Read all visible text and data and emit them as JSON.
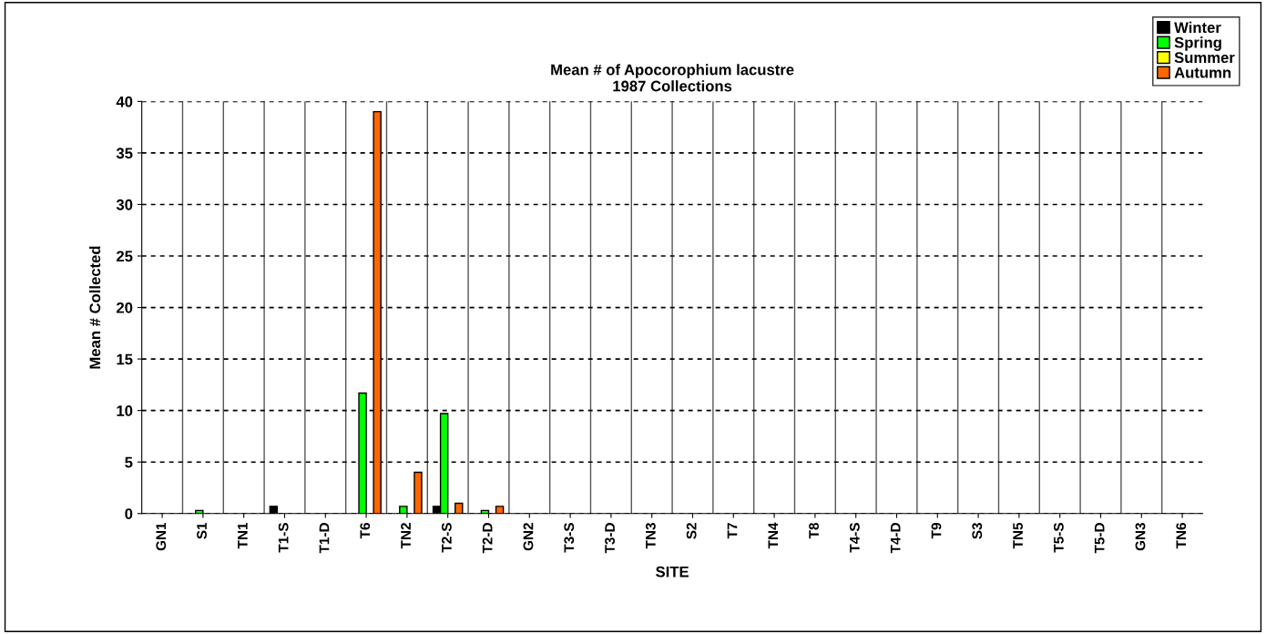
{
  "chart_data": {
    "type": "bar",
    "title": "Mean # of Apocorophium lacustre\n1987 Collections",
    "xlabel": "SITE",
    "ylabel": "Mean # Collected",
    "categories": [
      "GN1",
      "S1",
      "TN1",
      "T1-S",
      "T1-D",
      "T6",
      "TN2",
      "T2-S",
      "T2-D",
      "GN2",
      "T3-S",
      "T3-D",
      "TN3",
      "S2",
      "T7",
      "TN4",
      "T8",
      "T4-S",
      "T4-D",
      "T9",
      "S3",
      "TN5",
      "T5-S",
      "T5-D",
      "GN3",
      "TN6"
    ],
    "series": [
      {
        "name": "Winter",
        "color": "#000000",
        "values": [
          0,
          0,
          0,
          0.7,
          0,
          0,
          0,
          0.7,
          0,
          0,
          0,
          0,
          0,
          0,
          0,
          0,
          0,
          0,
          0,
          0,
          0,
          0,
          0,
          0,
          0,
          0
        ]
      },
      {
        "name": "Spring",
        "color": "#00ff00",
        "values": [
          0,
          0.3,
          0,
          0,
          0,
          11.7,
          0.7,
          9.7,
          0.3,
          0,
          0,
          0,
          0,
          0,
          0,
          0,
          0,
          0,
          0,
          0,
          0,
          0,
          0,
          0,
          0,
          0
        ]
      },
      {
        "name": "Summer",
        "color": "#ffff00",
        "values": [
          0,
          0,
          0,
          0,
          0,
          0,
          0,
          0,
          0,
          0,
          0,
          0,
          0,
          0,
          0,
          0,
          0,
          0,
          0,
          0,
          0,
          0,
          0,
          0,
          0,
          0
        ]
      },
      {
        "name": "Autumn",
        "color": "#ff6600",
        "values": [
          0,
          0,
          0,
          0,
          0,
          39,
          4,
          1,
          0.7,
          0,
          0,
          0,
          0,
          0,
          0,
          0,
          0,
          0,
          0,
          0,
          0,
          0,
          0,
          0,
          0,
          0
        ]
      }
    ],
    "ylim": [
      0,
      40
    ],
    "yticks": [
      0,
      5,
      10,
      15,
      20,
      25,
      30,
      35,
      40
    ],
    "grid": true,
    "legend": "top right"
  }
}
